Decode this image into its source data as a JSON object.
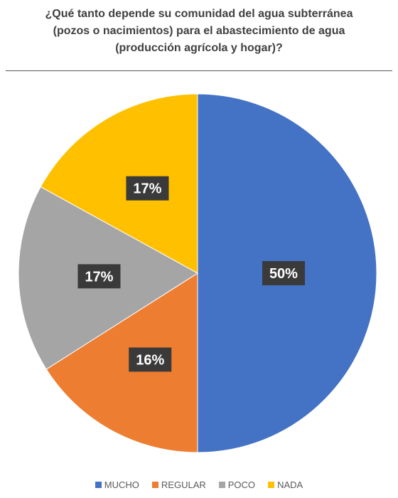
{
  "chart_data": {
    "type": "pie",
    "title_lines": [
      "¿Qué tanto depende su comunidad del agua subterránea",
      "(pozos o nacimientos) para el abastecimiento de agua",
      "(producción agrícola y hogar)?"
    ],
    "categories": [
      "MUCHO",
      "REGULAR",
      "POCO",
      "NADA"
    ],
    "values": [
      50,
      16,
      17,
      17
    ],
    "labels": [
      "50%",
      "16%",
      "17%",
      "17%"
    ],
    "colors": [
      "#4472C4",
      "#ED7D31",
      "#A5A5A5",
      "#FFC000"
    ],
    "legend_position": "bottom"
  }
}
